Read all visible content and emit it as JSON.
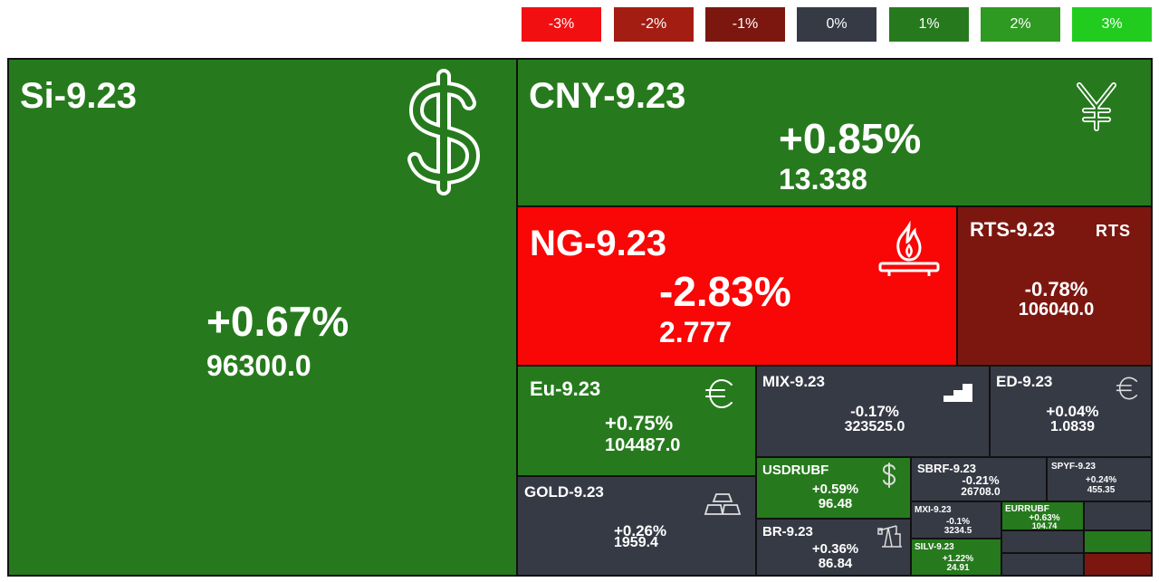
{
  "colors": {
    "neg3": "#f20f12",
    "neg2": "#a31d13",
    "neg1": "#7c1710",
    "zero": "#363a45",
    "pos1": "#267a1d",
    "pos2": "#2f9a22",
    "pos3": "#22cc1f"
  },
  "legend": [
    "-3%",
    "-2%",
    "-1%",
    "0%",
    "1%",
    "2%",
    "3%"
  ],
  "tiles": {
    "si": {
      "ticker": "Si-9.23",
      "change": "+0.67%",
      "price": "96300.0",
      "icon": "dollar-icon"
    },
    "cny": {
      "ticker": "CNY-9.23",
      "change": "+0.85%",
      "price": "13.338",
      "icon": "yen-icon"
    },
    "ng": {
      "ticker": "NG-9.23",
      "change": "-2.83%",
      "price": "2.777",
      "icon": "gas-flame-icon"
    },
    "rts": {
      "ticker": "RTS-9.23",
      "change": "-0.78%",
      "price": "106040.0",
      "icon_text": "RTS"
    },
    "eu": {
      "ticker": "Eu-9.23",
      "change": "+0.75%",
      "price": "104487.0",
      "icon": "euro-icon"
    },
    "mix": {
      "ticker": "MIX-9.23",
      "change": "-0.17%",
      "price": "323525.0",
      "icon": "bar-steps-icon"
    },
    "ed": {
      "ticker": "ED-9.23",
      "change": "+0.04%",
      "price": "1.0839",
      "icon": "euro-icon"
    },
    "gold": {
      "ticker": "GOLD-9.23",
      "change": "+0.26%",
      "price": "1959.4",
      "icon": "gold-bars-icon"
    },
    "usdrubf": {
      "ticker": "USDRUBF",
      "change": "+0.59%",
      "price": "96.48",
      "icon": "dollar-icon"
    },
    "br": {
      "ticker": "BR-9.23",
      "change": "+0.36%",
      "price": "86.84",
      "icon": "oil-pump-icon"
    },
    "sbrf": {
      "ticker": "SBRF-9.23",
      "change": "-0.21%",
      "price": "26708.0"
    },
    "spyf": {
      "ticker": "SPYF-9.23",
      "change": "+0.24%",
      "price": "455.35"
    },
    "mxi": {
      "ticker": "MXI-9.23",
      "change": "-0.1%",
      "price": "3234.5"
    },
    "eurrubf": {
      "ticker": "EURRUBF",
      "change": "+0.63%",
      "price": "104.74"
    },
    "silv": {
      "ticker": "SILV-9.23",
      "change": "+1.22%",
      "price": "24.91"
    }
  }
}
